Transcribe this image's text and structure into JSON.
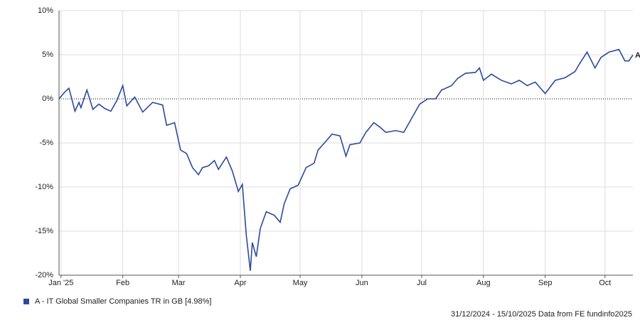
{
  "chart_data": {
    "type": "line",
    "x": [
      0,
      3,
      5,
      8,
      10,
      11,
      14,
      17,
      20,
      23,
      26,
      29,
      32,
      34,
      38,
      42,
      47,
      52,
      54,
      58,
      61,
      64,
      67,
      70,
      72,
      75,
      78,
      80,
      84,
      87,
      90,
      92,
      94,
      96,
      97,
      99,
      101,
      104,
      108,
      111,
      113,
      116,
      120,
      124,
      128,
      130,
      134,
      137,
      141,
      144,
      146,
      151,
      154,
      158,
      161,
      164,
      169,
      173,
      177,
      181,
      185,
      189,
      192,
      197,
      200,
      204,
      209,
      211,
      213,
      217,
      222,
      227,
      231,
      235,
      239,
      244,
      249,
      254,
      259,
      261,
      265,
      269,
      272,
      276,
      281,
      284,
      286,
      288
    ],
    "series": [
      {
        "name": "A - IT Global Smaller Companies TR in GB [4.98%]",
        "end_label": "A",
        "color": "#2a4a9c",
        "values": [
          0,
          0.8,
          1.2,
          -1.4,
          -0.4,
          -1.0,
          1.0,
          -1.2,
          -0.6,
          -1.1,
          -1.4,
          -0.2,
          1.5,
          -0.8,
          0.2,
          -1.5,
          -0.4,
          -0.7,
          -3.0,
          -2.7,
          -5.8,
          -6.2,
          -7.8,
          -8.6,
          -7.8,
          -7.6,
          -7.0,
          -8.0,
          -6.6,
          -8.2,
          -10.5,
          -9.7,
          -15.5,
          -19.5,
          -16.3,
          -17.9,
          -14.7,
          -12.8,
          -13.2,
          -14.0,
          -11.9,
          -10.2,
          -9.8,
          -7.8,
          -7.3,
          -5.8,
          -4.8,
          -4.0,
          -4.2,
          -6.5,
          -5.2,
          -5.0,
          -3.8,
          -2.7,
          -3.2,
          -3.8,
          -3.6,
          -3.8,
          -2.2,
          -0.6,
          0,
          0,
          1.0,
          1.5,
          2.3,
          2.9,
          3.0,
          3.5,
          2.1,
          2.8,
          2.1,
          1.7,
          2.1,
          1.5,
          1.9,
          0.6,
          2.1,
          2.4,
          3.1,
          3.9,
          5.3,
          3.5,
          4.7,
          5.3,
          5.6,
          4.3,
          4.3,
          4.98
        ]
      }
    ],
    "xlim": [
      0,
      288
    ],
    "xticks": [
      {
        "value": 1,
        "label": "Jan '25"
      },
      {
        "value": 32,
        "label": "Feb"
      },
      {
        "value": 60,
        "label": "Mar"
      },
      {
        "value": 91,
        "label": "Apr"
      },
      {
        "value": 121,
        "label": "May"
      },
      {
        "value": 152,
        "label": "Jun"
      },
      {
        "value": 182,
        "label": "Jul"
      },
      {
        "value": 213,
        "label": "Aug"
      },
      {
        "value": 244,
        "label": "Sep"
      },
      {
        "value": 274,
        "label": "Oct"
      }
    ],
    "ylim": [
      -20,
      10
    ],
    "yticks": [
      {
        "value": 10,
        "label": "10%"
      },
      {
        "value": 5,
        "label": "5%"
      },
      {
        "value": 0,
        "label": "0%"
      },
      {
        "value": -5,
        "label": "-5%"
      },
      {
        "value": -10,
        "label": "-10%"
      },
      {
        "value": -15,
        "label": "-15%"
      },
      {
        "value": -20,
        "label": "-20%"
      }
    ],
    "grid": true,
    "footer": "31/12/2024 - 15/10/2025 Data from FE fundinfo2025"
  }
}
